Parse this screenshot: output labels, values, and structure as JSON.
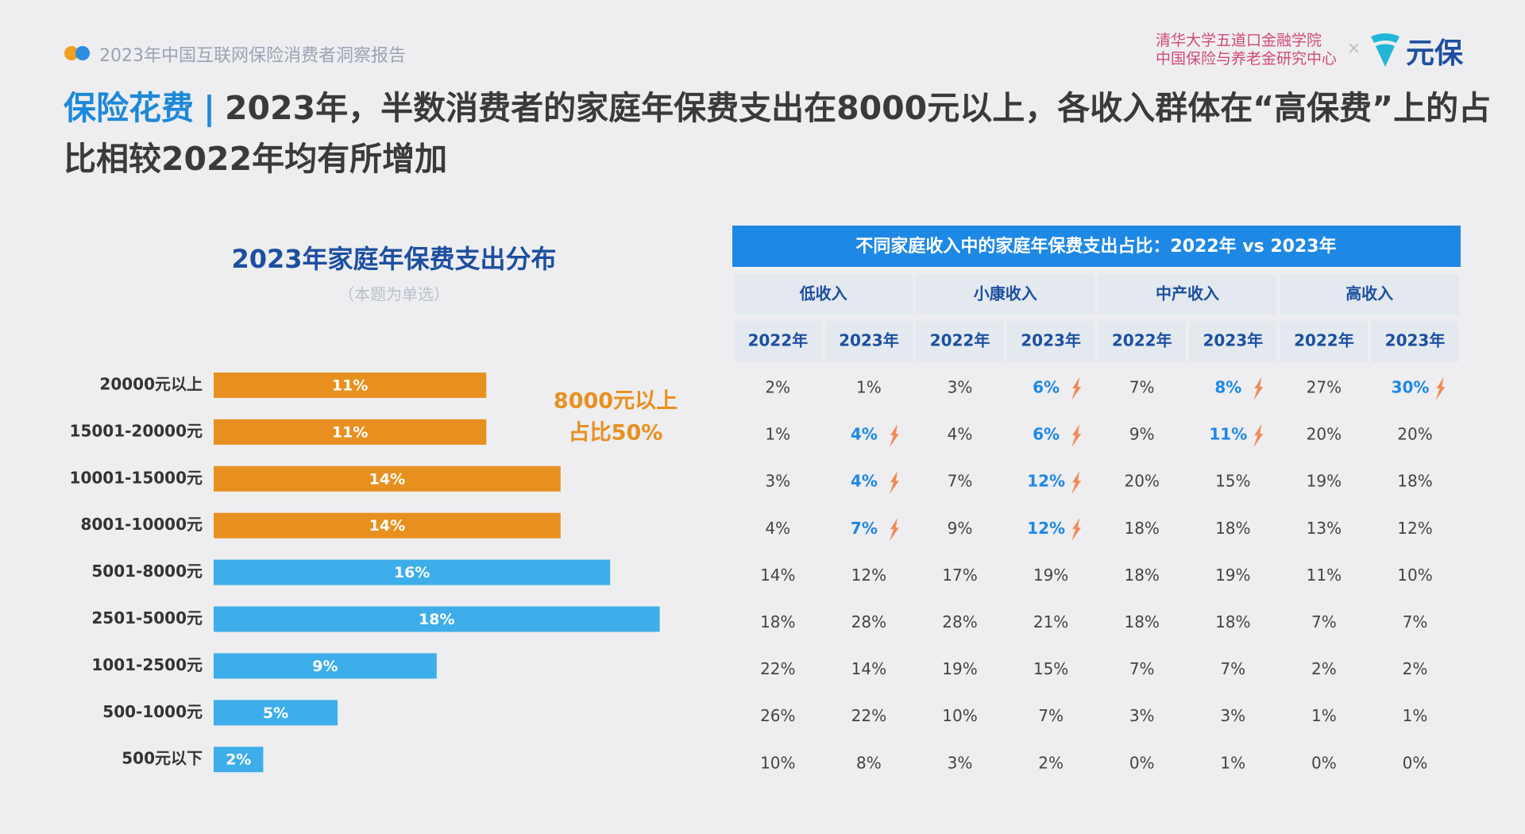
{
  "header": {
    "report": "2023年中国互联网保险消费者洞察报告",
    "partner_lines": [
      "清华大学五道口金融学院",
      "中国保险与养老金研究中心"
    ],
    "cross": "×",
    "brand": "元保",
    "title_highlight": "保险花费",
    "title_separator": "|",
    "title_rest": "2023年，半数消费者的家庭年保费支出在8000元以上，各收入群体在“高保费”上的占比相较2022年均有所增加"
  },
  "chart_data": {
    "type": "bar",
    "orientation": "horizontal",
    "title": "2023年家庭年保费支出分布",
    "subtitle": "（本题为单选）",
    "categories": [
      "20000元以上",
      "15001-20000元",
      "10001-15000元",
      "8001-10000元",
      "5001-8000元",
      "2501-5000元",
      "1001-2500元",
      "500-1000元",
      "500元以下"
    ],
    "values": [
      11,
      11,
      14,
      14,
      16,
      18,
      9,
      5,
      2
    ],
    "value_labels": [
      "11%",
      "11%",
      "14%",
      "14%",
      "16%",
      "18%",
      "9%",
      "5%",
      "2%"
    ],
    "colors": [
      "#e8901f",
      "#e8901f",
      "#e8901f",
      "#e8901f",
      "#3daee9",
      "#3daee9",
      "#3daee9",
      "#3daee9",
      "#3daee9"
    ],
    "annotation": [
      "8000元以上",
      "占比50%"
    ]
  },
  "table": {
    "title": "不同家庭收入中的家庭年保费支出占比：2022年 vs 2023年",
    "groups": [
      "低收入",
      "小康收入",
      "中产收入",
      "高收入"
    ],
    "years": [
      "2022年",
      "2023年",
      "2022年",
      "2023年",
      "2022年",
      "2023年",
      "2022年",
      "2023年"
    ],
    "rows": [
      [
        "2%",
        "1%",
        "3%",
        "6%",
        "7%",
        "8%",
        "27%",
        "30%"
      ],
      [
        "1%",
        "4%",
        "4%",
        "6%",
        "9%",
        "11%",
        "20%",
        "20%"
      ],
      [
        "3%",
        "4%",
        "7%",
        "12%",
        "20%",
        "15%",
        "19%",
        "18%"
      ],
      [
        "4%",
        "7%",
        "9%",
        "12%",
        "18%",
        "18%",
        "13%",
        "12%"
      ],
      [
        "14%",
        "12%",
        "17%",
        "19%",
        "18%",
        "19%",
        "11%",
        "10%"
      ],
      [
        "18%",
        "28%",
        "28%",
        "21%",
        "18%",
        "18%",
        "7%",
        "7%"
      ],
      [
        "22%",
        "14%",
        "19%",
        "15%",
        "7%",
        "7%",
        "2%",
        "2%"
      ],
      [
        "26%",
        "22%",
        "10%",
        "7%",
        "3%",
        "3%",
        "1%",
        "1%"
      ],
      [
        "10%",
        "8%",
        "3%",
        "2%",
        "0%",
        "1%",
        "0%",
        "0%"
      ]
    ],
    "highlighted": [
      [
        0,
        3
      ],
      [
        0,
        5
      ],
      [
        0,
        7
      ],
      [
        1,
        1
      ],
      [
        1,
        3
      ],
      [
        1,
        5
      ],
      [
        2,
        1
      ],
      [
        2,
        3
      ],
      [
        3,
        1
      ],
      [
        3,
        3
      ]
    ]
  }
}
